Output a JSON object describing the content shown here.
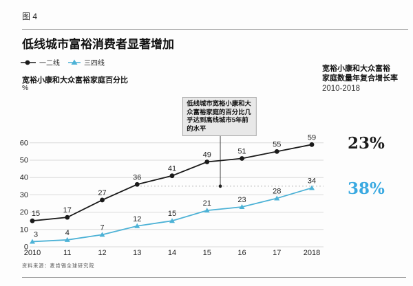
{
  "figure_label": "图 4",
  "title": "低线城市富裕消费者显著增加",
  "legend": [
    {
      "label": "一二线",
      "color": "#1a1a1a",
      "marker": "circle"
    },
    {
      "label": "三四线",
      "color": "#4db2d6",
      "marker": "triangle"
    }
  ],
  "y_axis_title": "宽裕小康和大众富裕家庭百分比",
  "y_axis_unit": "%",
  "right_header": {
    "line1": "宽裕小康和大众富裕",
    "line2": "家庭数量年复合增长率",
    "period": "2010-2018",
    "cagr": [
      {
        "value": "23%",
        "color": "#1a1a1a"
      },
      {
        "value": "38%",
        "color": "#3aa9e1"
      }
    ]
  },
  "annotation": {
    "text": "低线城市宽裕小康和大众富裕家庭的百分比几乎达到高线城市5年前的水平"
  },
  "source": "资料来源：麦肯锡全球研究院",
  "chart_data": {
    "type": "line",
    "categories": [
      "2010",
      "11",
      "12",
      "13",
      "14",
      "15",
      "16",
      "17",
      "2018"
    ],
    "series": [
      {
        "name": "一二线",
        "values": [
          15,
          17,
          27,
          36,
          41,
          49,
          51,
          55,
          59
        ],
        "color": "#1a1a1a",
        "marker": "circle"
      },
      {
        "name": "三四线",
        "values": [
          3,
          4,
          7,
          12,
          15,
          21,
          23,
          28,
          34
        ],
        "color": "#4db2d6",
        "marker": "triangle"
      }
    ],
    "ylabel": "宽裕小康和大众富裕家庭百分比",
    "y_unit": "%",
    "ylim": [
      0,
      60
    ],
    "y_ticks": [
      0,
      10,
      20,
      30,
      40,
      50,
      60
    ],
    "grid": true,
    "reference_line_y": 35,
    "annotation_x": "2015",
    "legend_position": "top-left"
  }
}
